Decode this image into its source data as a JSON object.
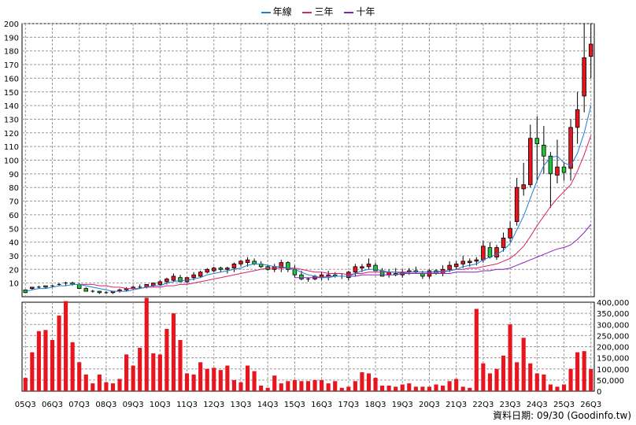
{
  "chart_data": {
    "type": "candlestick",
    "legend": [
      {
        "label": "年線",
        "color": "#1f7fd6"
      },
      {
        "label": "三年",
        "color": "#d6256b"
      },
      {
        "label": "十年",
        "color": "#8a22b8"
      }
    ],
    "price_axis": {
      "min": 0,
      "max": 200,
      "ticks": [
        10,
        20,
        30,
        40,
        50,
        60,
        70,
        80,
        90,
        100,
        110,
        120,
        130,
        140,
        150,
        160,
        170,
        180,
        190,
        200
      ]
    },
    "volume_axis": {
      "min": 0,
      "max": 400000,
      "ticks": [
        {
          "value": 0,
          "label": "0"
        },
        {
          "value": 50000,
          "label": "50,000"
        },
        {
          "value": 100000,
          "label": "100,000"
        },
        {
          "value": 150000,
          "label": "150,000"
        },
        {
          "value": 200000,
          "label": "200,000"
        },
        {
          "value": 250000,
          "label": "250,000"
        },
        {
          "value": 300000,
          "label": "300,000"
        },
        {
          "value": 350000,
          "label": "350,000"
        },
        {
          "value": 400000,
          "label": "400,000"
        }
      ]
    },
    "x_labels": [
      "05Q3",
      "06Q3",
      "07Q3",
      "08Q3",
      "09Q3",
      "10Q3",
      "11Q3",
      "12Q3",
      "13Q3",
      "14Q3",
      "15Q3",
      "16Q3",
      "17Q3",
      "18Q3",
      "19Q3",
      "20Q3",
      "21Q3",
      "22Q3",
      "23Q3",
      "24Q3",
      "25Q3",
      "26Q3"
    ],
    "candles": [
      [
        5,
        5,
        4,
        3
      ],
      [
        6,
        7,
        5,
        7
      ],
      [
        7,
        8,
        6,
        7
      ],
      [
        8,
        8,
        6,
        7
      ],
      [
        8,
        8,
        7,
        8
      ],
      [
        9,
        10,
        8,
        9
      ],
      [
        10,
        11,
        8,
        10
      ],
      [
        10,
        11,
        8,
        9
      ],
      [
        9,
        10,
        7,
        6
      ],
      [
        6,
        7,
        4,
        4
      ],
      [
        4,
        5,
        3,
        4
      ],
      [
        4,
        4,
        2,
        3
      ],
      [
        3,
        4,
        2,
        3
      ],
      [
        3,
        4,
        2,
        4
      ],
      [
        4,
        6,
        3,
        5
      ],
      [
        5,
        7,
        4,
        6
      ],
      [
        6,
        8,
        5,
        7
      ],
      [
        7,
        9,
        6,
        7
      ],
      [
        7,
        9,
        6,
        9
      ],
      [
        8,
        10,
        7,
        10
      ],
      [
        9,
        12,
        8,
        11
      ],
      [
        11,
        14,
        9,
        13
      ],
      [
        12,
        17,
        11,
        15
      ],
      [
        14,
        16,
        11,
        11
      ],
      [
        11,
        14,
        10,
        14
      ],
      [
        14,
        18,
        12,
        16
      ],
      [
        15,
        19,
        14,
        18
      ],
      [
        18,
        21,
        17,
        20
      ],
      [
        19,
        22,
        18,
        21
      ],
      [
        21,
        22,
        18,
        20
      ],
      [
        20,
        22,
        17,
        21
      ],
      [
        21,
        25,
        18,
        24
      ],
      [
        24,
        27,
        22,
        26
      ],
      [
        25,
        29,
        22,
        27
      ],
      [
        26,
        28,
        23,
        24
      ],
      [
        24,
        26,
        21,
        22
      ],
      [
        22,
        23,
        19,
        20
      ],
      [
        20,
        24,
        18,
        22
      ],
      [
        21,
        27,
        18,
        25
      ],
      [
        25,
        26,
        18,
        20
      ],
      [
        20,
        23,
        14,
        16
      ],
      [
        16,
        19,
        12,
        13
      ],
      [
        13,
        14,
        11,
        13
      ],
      [
        13,
        16,
        12,
        15
      ],
      [
        14,
        18,
        12,
        16
      ],
      [
        15,
        19,
        12,
        16
      ],
      [
        16,
        18,
        14,
        15
      ],
      [
        15,
        17,
        13,
        15
      ],
      [
        14,
        19,
        12,
        18
      ],
      [
        18,
        24,
        15,
        22
      ],
      [
        21,
        24,
        18,
        22
      ],
      [
        22,
        28,
        20,
        24
      ],
      [
        23,
        25,
        19,
        19
      ],
      [
        19,
        21,
        15,
        15
      ],
      [
        16,
        20,
        14,
        18
      ],
      [
        17,
        21,
        15,
        16
      ],
      [
        16,
        20,
        14,
        18
      ],
      [
        18,
        21,
        16,
        19
      ],
      [
        19,
        22,
        17,
        18
      ],
      [
        17,
        19,
        13,
        15
      ],
      [
        15,
        20,
        13,
        19
      ],
      [
        19,
        20,
        16,
        17
      ],
      [
        17,
        23,
        15,
        20
      ],
      [
        20,
        26,
        18,
        23
      ],
      [
        22,
        26,
        20,
        24
      ],
      [
        24,
        30,
        21,
        26
      ],
      [
        25,
        28,
        22,
        26
      ],
      [
        26,
        29,
        23,
        27
      ],
      [
        27,
        41,
        25,
        37
      ],
      [
        36,
        40,
        28,
        29
      ],
      [
        29,
        38,
        27,
        36
      ],
      [
        36,
        47,
        33,
        43
      ],
      [
        43,
        55,
        40,
        50
      ],
      [
        55,
        87,
        52,
        80
      ],
      [
        79,
        98,
        74,
        82
      ],
      [
        82,
        126,
        80,
        116
      ],
      [
        116,
        132,
        85,
        112
      ],
      [
        111,
        125,
        90,
        103
      ],
      [
        103,
        106,
        65,
        90
      ],
      [
        89,
        115,
        83,
        95
      ],
      [
        95,
        98,
        85,
        91
      ],
      [
        94,
        130,
        85,
        124
      ],
      [
        124,
        150,
        112,
        137
      ],
      [
        147,
        200,
        135,
        175
      ],
      [
        176,
        200,
        160,
        185
      ]
    ],
    "volumes": [
      60000,
      175000,
      270000,
      275000,
      230000,
      340000,
      405000,
      220000,
      130000,
      75000,
      35000,
      75000,
      40000,
      35000,
      55000,
      165000,
      115000,
      195000,
      420000,
      170000,
      165000,
      280000,
      350000,
      230000,
      80000,
      75000,
      130000,
      100000,
      105000,
      95000,
      115000,
      50000,
      40000,
      115000,
      90000,
      25000,
      15000,
      70000,
      35000,
      45000,
      50000,
      45000,
      45000,
      50000,
      50000,
      35000,
      45000,
      15000,
      20000,
      45000,
      85000,
      80000,
      60000,
      25000,
      25000,
      20000,
      30000,
      35000,
      20000,
      20000,
      20000,
      30000,
      25000,
      45000,
      55000,
      20000,
      15000,
      370000,
      125000,
      80000,
      100000,
      160000,
      300000,
      130000,
      240000,
      125000,
      80000,
      75000,
      30000,
      20000,
      30000,
      100000,
      175000,
      180000,
      100000
    ],
    "ma_1y": [
      4,
      5,
      6,
      6,
      7,
      8,
      8,
      9,
      9,
      8,
      7,
      6,
      5,
      4,
      4,
      4,
      5,
      6,
      7,
      8,
      8,
      10,
      11,
      12,
      12,
      13,
      14,
      16,
      17,
      18,
      19,
      20,
      21,
      23,
      24,
      24,
      23,
      22,
      22,
      21,
      20,
      18,
      16,
      15,
      14,
      14,
      15,
      15,
      15,
      17,
      19,
      20,
      20,
      19,
      18,
      18,
      17,
      18,
      18,
      18,
      18,
      18,
      18,
      19,
      20,
      22,
      23,
      24,
      27,
      29,
      31,
      34,
      39,
      49,
      59,
      72,
      85,
      96,
      102,
      103,
      98,
      96,
      105,
      120,
      140
    ],
    "ma_3y": [
      null,
      null,
      null,
      null,
      null,
      null,
      null,
      null,
      9,
      9,
      9,
      8,
      8,
      7,
      7,
      6,
      6,
      6,
      7,
      7,
      7,
      8,
      8,
      9,
      9,
      10,
      11,
      12,
      13,
      14,
      15,
      16,
      17,
      18,
      19,
      20,
      21,
      21,
      21,
      21,
      21,
      20,
      19,
      18,
      18,
      17,
      17,
      17,
      16,
      17,
      17,
      18,
      18,
      18,
      18,
      18,
      18,
      18,
      18,
      18,
      18,
      18,
      19,
      19,
      20,
      20,
      21,
      21,
      22,
      23,
      24,
      26,
      28,
      32,
      37,
      44,
      52,
      59,
      66,
      72,
      77,
      82,
      92,
      104,
      118
    ],
    "ma_10y": [
      null,
      null,
      null,
      null,
      null,
      null,
      null,
      null,
      null,
      null,
      null,
      null,
      null,
      null,
      null,
      null,
      null,
      null,
      null,
      null,
      null,
      null,
      null,
      null,
      null,
      null,
      null,
      null,
      null,
      null,
      null,
      null,
      null,
      null,
      null,
      null,
      null,
      null,
      null,
      null,
      14,
      14,
      14,
      14,
      14,
      15,
      15,
      15,
      15,
      15,
      16,
      16,
      16,
      16,
      16,
      16,
      17,
      17,
      17,
      17,
      17,
      17,
      17,
      17,
      18,
      18,
      18,
      18,
      19,
      19,
      20,
      20,
      21,
      23,
      25,
      27,
      29,
      31,
      33,
      35,
      36,
      38,
      42,
      47,
      53
    ]
  },
  "footer": {
    "date_label": "資料日期: 09/30",
    "source": "(Goodinfo.tw)"
  }
}
